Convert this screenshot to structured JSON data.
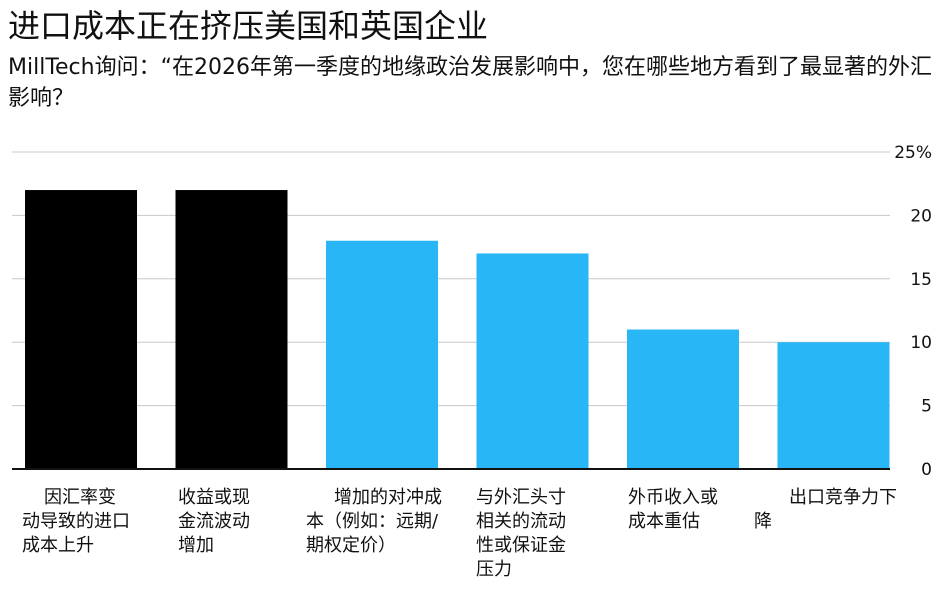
{
  "title": "进口成本正在挤压美国和英国企业",
  "subtitle": "MillTech询问：“在2026年第一季度的地缘政治发展影响中，您在哪些地方看到了最显著的外汇影响？",
  "chart_data": {
    "type": "bar",
    "categories": [
      "因汇率变动导致的进口成本上升",
      "收益或现金流波动增加",
      "增加的对冲成本（例如：远期/期权定价）",
      "与外汇头寸相关的流动性或保证金压力",
      "外币收入或成本重估",
      "出口竞争力下降"
    ],
    "category_lines": [
      [
        "因汇率变",
        "动导致的进口",
        "成本上升"
      ],
      [
        "收益或现",
        "金流波动",
        "增加"
      ],
      [
        "增加的对冲成",
        "本（例如：远期/",
        "期权定价）"
      ],
      [
        "与外汇头寸",
        "相关的流动",
        "性或保证金",
        "压力"
      ],
      [
        "外币收入或",
        "成本重估　　　降"
      ],
      [
        "出口竞争力下"
      ]
    ],
    "values": [
      22,
      22,
      18,
      17,
      11,
      10
    ],
    "colors": [
      "#000000",
      "#000000",
      "#29b6f6",
      "#29b6f6",
      "#29b6f6",
      "#29b6f6"
    ],
    "ylim": [
      0,
      25
    ],
    "yticks": [
      0,
      5,
      10,
      15,
      20,
      25
    ],
    "ytick_labels": [
      "0",
      "5",
      "10",
      "15",
      "20",
      "25%"
    ],
    "grid": true,
    "axis_side": "right"
  }
}
